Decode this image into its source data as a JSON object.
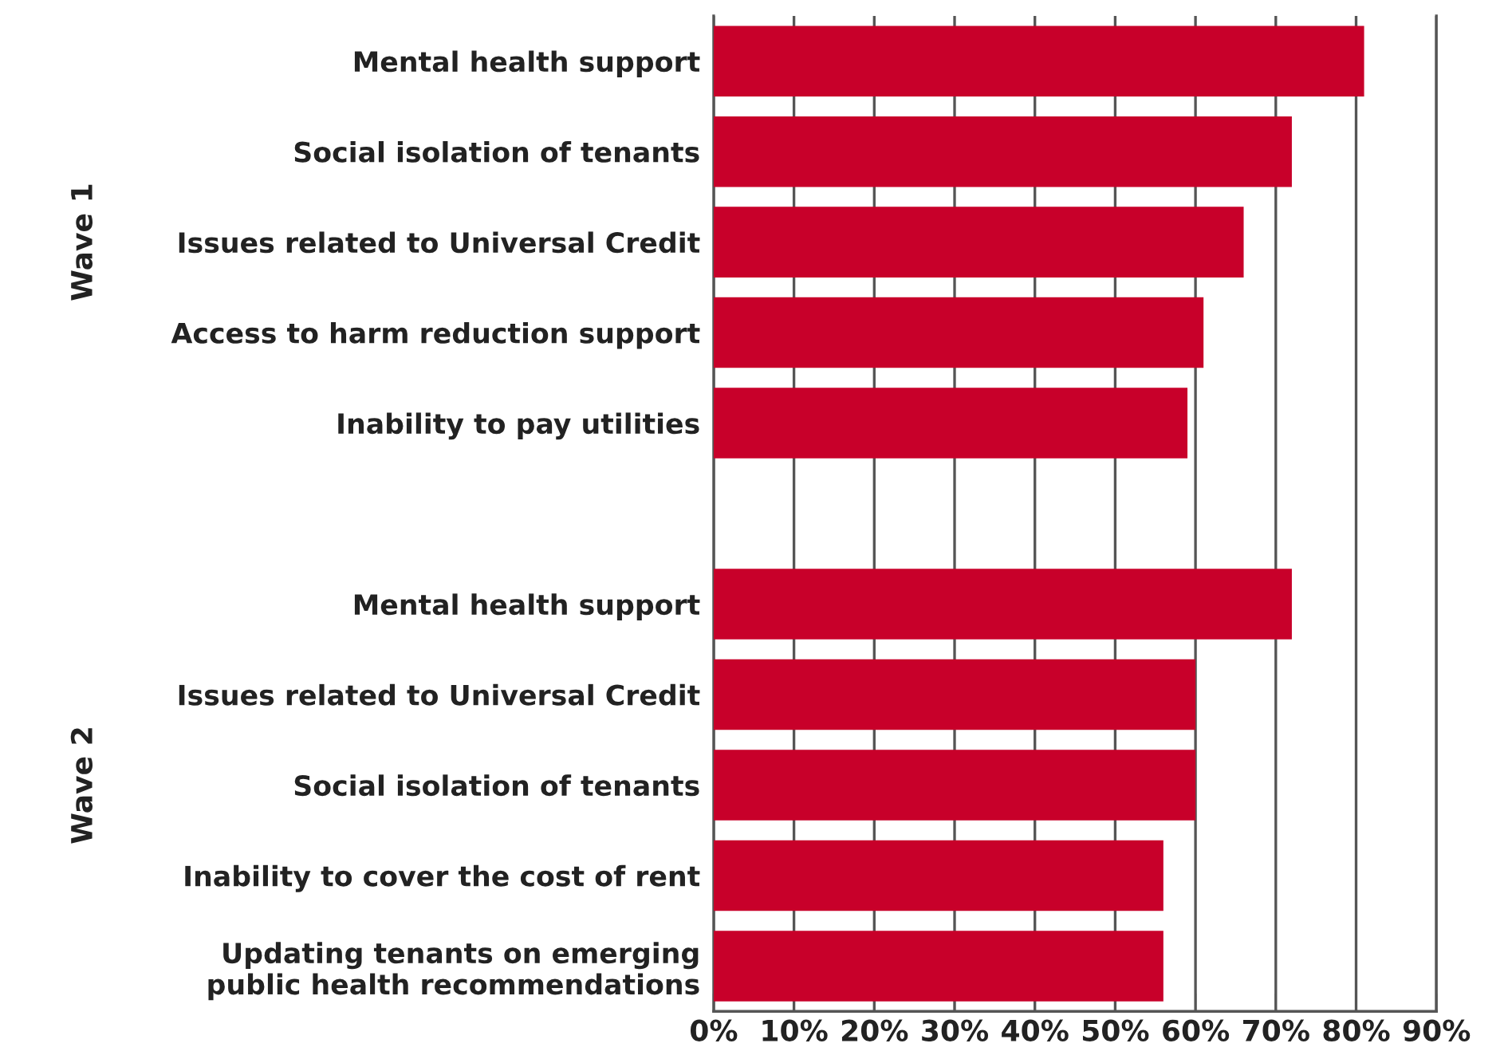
{
  "chart_data": {
    "type": "bar",
    "orientation": "horizontal",
    "categories": [
      "Mental health support",
      "Social isolation of tenants",
      "Issues related to Universal Credit",
      "Access to harm reduction support",
      "Inability to pay utilities",
      null,
      "Mental health support",
      "Issues related to Universal Credit",
      "Social isolation of tenants",
      "Inability to cover the cost of rent",
      "Updating tenants on emerging\npublic health recommendations"
    ],
    "values": [
      81,
      72,
      66,
      61,
      59,
      null,
      72,
      60,
      60,
      56,
      56
    ],
    "color": "#c8002a",
    "xlim": [
      0,
      90
    ],
    "xticks": [
      {
        "value": 0,
        "label": "0%"
      },
      {
        "value": 10,
        "label": "10%"
      },
      {
        "value": 20,
        "label": "20%"
      },
      {
        "value": 30,
        "label": "30%"
      },
      {
        "value": 40,
        "label": "40%"
      },
      {
        "value": 50,
        "label": "50%"
      },
      {
        "value": 60,
        "label": "60%"
      },
      {
        "value": 70,
        "label": "70%"
      },
      {
        "value": 80,
        "label": "80%"
      },
      {
        "value": 90,
        "label": "90%"
      }
    ],
    "grid": "x",
    "annotations": [
      "Wave 1",
      "Wave 2"
    ]
  }
}
